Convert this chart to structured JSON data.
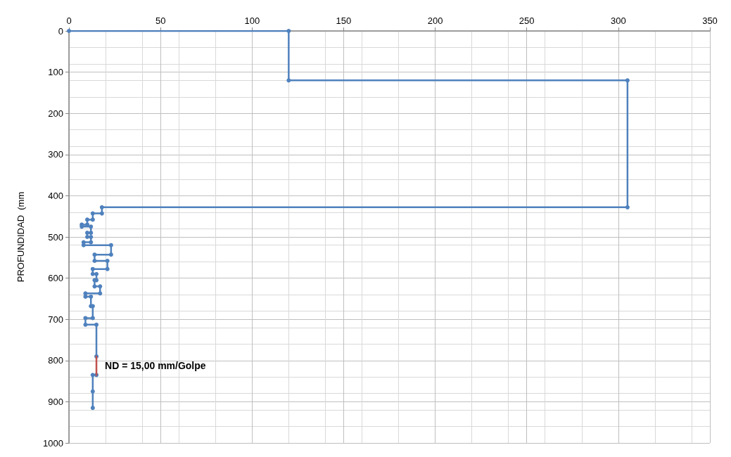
{
  "chart_data": {
    "type": "line",
    "ylabel": "PROFUNDIDAD  (mm",
    "xlim": [
      0,
      350
    ],
    "xticks": [
      0,
      50,
      100,
      150,
      200,
      250,
      300,
      350
    ],
    "ylim": [
      1000,
      0
    ],
    "yticks": [
      0,
      100,
      200,
      300,
      400,
      500,
      600,
      700,
      800,
      900,
      1000
    ],
    "grid": true,
    "marker": "circle",
    "line_style": "solid",
    "series": [
      {
        "color": "#4f81bd",
        "x": [
          0,
          120,
          120,
          305,
          305,
          18,
          18,
          13,
          13,
          10,
          10,
          7,
          7,
          12,
          12,
          10,
          10,
          12,
          12,
          8,
          8,
          23,
          23,
          14,
          14,
          21,
          21,
          13,
          13,
          15,
          15,
          14,
          14,
          17,
          17,
          9,
          9,
          12,
          12,
          13,
          13,
          9,
          9,
          15,
          15,
          null,
          15,
          13,
          13,
          13
        ],
        "values": [
          0,
          0,
          120,
          120,
          428,
          428,
          443,
          443,
          458,
          458,
          470,
          470,
          475,
          475,
          490,
          490,
          500,
          500,
          513,
          513,
          520,
          520,
          543,
          543,
          558,
          558,
          578,
          578,
          590,
          590,
          605,
          605,
          620,
          620,
          637,
          637,
          645,
          645,
          668,
          668,
          697,
          697,
          713,
          713,
          790,
          null,
          835,
          835,
          875,
          915
        ]
      },
      {
        "color": "#c0504d",
        "marker": "none",
        "x": [
          15,
          15
        ],
        "values": [
          790,
          835
        ]
      }
    ],
    "annotations": [
      {
        "text": "ND = 15,00 mm/Golpe",
        "x": 15,
        "y": 812
      }
    ]
  }
}
